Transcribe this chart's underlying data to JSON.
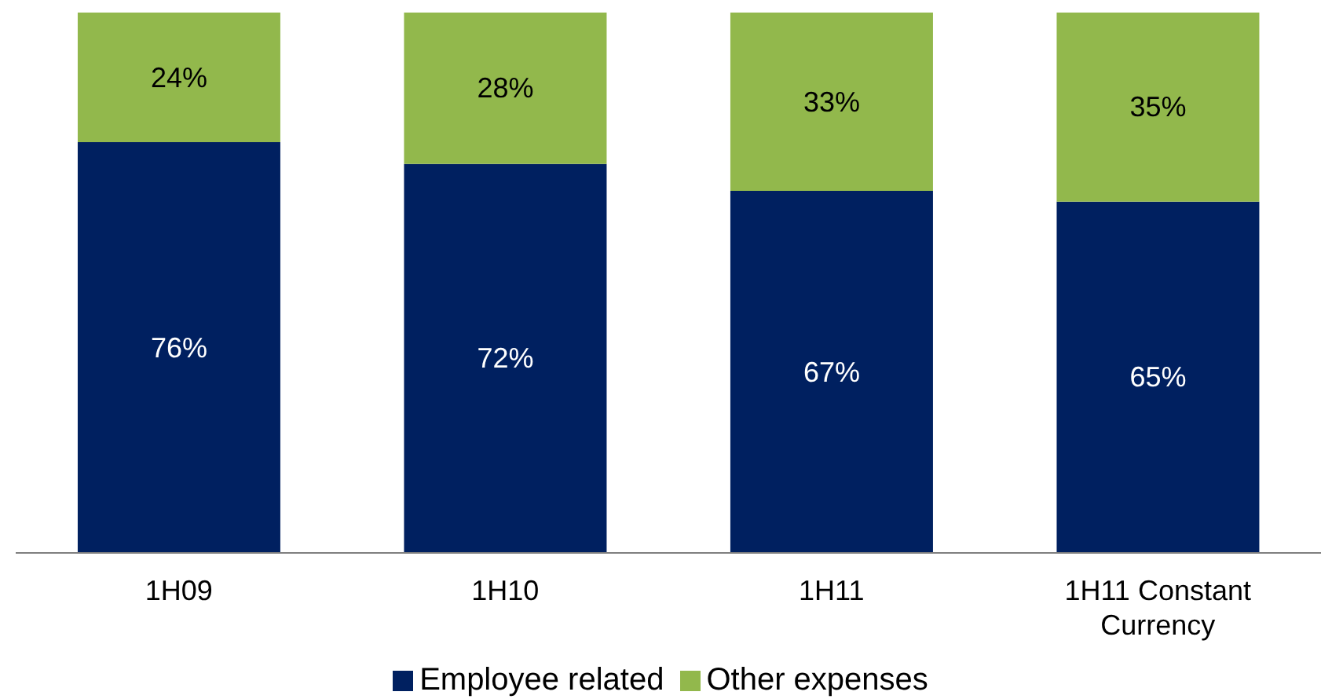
{
  "chart_data": {
    "type": "bar",
    "stacked": true,
    "categories": [
      "1H09",
      "1H10",
      "1H11",
      "1H11 Constant Currency"
    ],
    "series": [
      {
        "name": "Employee related",
        "color": "#002060",
        "values": [
          76,
          72,
          67,
          65
        ],
        "value_labels": [
          "76%",
          "72%",
          "67%",
          "65%"
        ]
      },
      {
        "name": "Other expenses",
        "color": "#92b84c",
        "values": [
          24,
          28,
          33,
          35
        ],
        "value_labels": [
          "24%",
          "28%",
          "33%",
          "35%"
        ]
      }
    ],
    "legend": "bottom",
    "grid": false
  }
}
